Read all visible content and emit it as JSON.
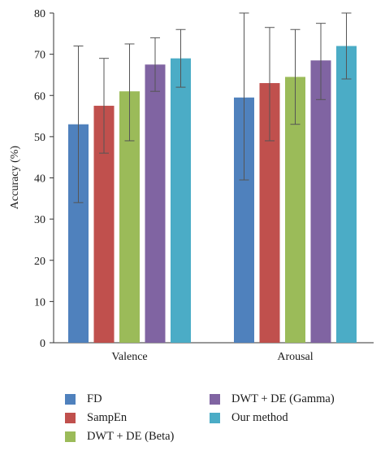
{
  "chart_data": {
    "type": "bar",
    "categories": [
      "Valence",
      "Arousal"
    ],
    "series": [
      {
        "name": "FD",
        "color": "#4f81bd",
        "values": [
          53,
          59.5
        ],
        "err_low": [
          34,
          39.5
        ],
        "err_high": [
          72,
          80
        ]
      },
      {
        "name": "SampEn",
        "color": "#c0504d",
        "values": [
          57.5,
          63
        ],
        "err_low": [
          46,
          49
        ],
        "err_high": [
          69,
          76.5
        ]
      },
      {
        "name": "DWT + DE (Beta)",
        "color": "#9bbb59",
        "values": [
          61,
          64.5
        ],
        "err_low": [
          49,
          53
        ],
        "err_high": [
          72.5,
          76
        ]
      },
      {
        "name": "DWT + DE (Gamma)",
        "color": "#8064a2",
        "values": [
          67.5,
          68.5
        ],
        "err_low": [
          61,
          59
        ],
        "err_high": [
          74,
          77.5
        ]
      },
      {
        "name": "Our method",
        "color": "#4bacc6",
        "values": [
          69,
          72
        ],
        "err_low": [
          62,
          64
        ],
        "err_high": [
          76,
          80
        ]
      }
    ],
    "ylabel": "Accuracy (%)",
    "xlabel": "",
    "ylim": [
      0,
      80
    ],
    "yticks": [
      0,
      10,
      20,
      30,
      40,
      50,
      60,
      70,
      80
    ],
    "grid": false,
    "legend_position": "bottom"
  }
}
